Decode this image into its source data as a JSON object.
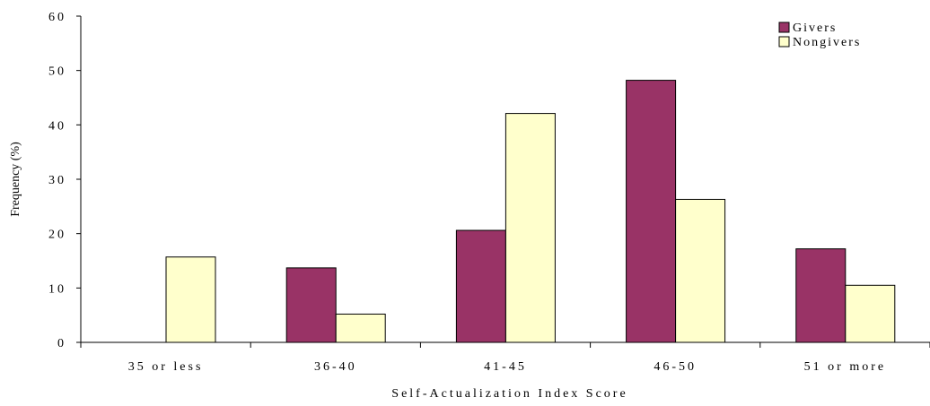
{
  "chart_data": {
    "type": "bar",
    "title": "",
    "xlabel": "Self-Actualization Index Score",
    "ylabel": "Frequency (%)",
    "ylim": [
      0,
      60
    ],
    "yticks": [
      0,
      10,
      20,
      30,
      40,
      50,
      60
    ],
    "grid": false,
    "legend_position": "top-right",
    "categories": [
      "35 or less",
      "36-40",
      "41-45",
      "46-50",
      "51 or more"
    ],
    "series": [
      {
        "name": "Givers",
        "color": "#993366",
        "values": [
          0,
          13.7,
          20.6,
          48.2,
          17.2
        ]
      },
      {
        "name": "Nongivers",
        "color": "#FFFFCC",
        "values": [
          15.7,
          5.2,
          42.1,
          26.3,
          10.5
        ]
      }
    ]
  }
}
